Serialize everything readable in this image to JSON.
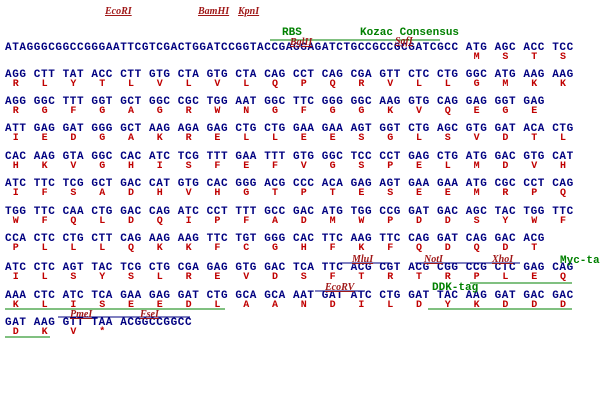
{
  "rows": [
    {
      "leader": "ATAGGGCGGCCGGGAATTCGTCGACTGGATCCGGTACCGAGGAGATCTGCCGCCGCGATCGCC",
      "codons": [
        "ATG",
        "AGC",
        "ACC",
        "TCC"
      ],
      "aa": [
        "M",
        "S",
        "T",
        "S"
      ],
      "labels": [
        "EcoRI",
        "BamHI",
        "KpnI",
        "RBS",
        "BglII",
        "Kozac Consensus",
        "SgfI"
      ]
    },
    {
      "codons": [
        "AGG",
        "CTT",
        "TAT",
        "ACC",
        "CTT",
        "GTG",
        "CTA",
        "GTG",
        "CTA",
        "CAG",
        "CCT",
        "CAG",
        "CGA",
        "GTT",
        "CTC",
        "CTG",
        "GGC",
        "ATG",
        "AAG",
        "AAG"
      ],
      "aa": [
        "R",
        "L",
        "Y",
        "T",
        "L",
        "V",
        "L",
        "V",
        "L",
        "Q",
        "P",
        "Q",
        "R",
        "V",
        "L",
        "L",
        "G",
        "M",
        "K",
        "K"
      ],
      "labels": []
    },
    {
      "codons": [
        "AGG",
        "GGC",
        "TTT",
        "GGT",
        "GCT",
        "GGC",
        "CGC",
        "TGG",
        "AAT",
        "GGC",
        "TTC",
        "GGG",
        "GGC",
        "AAG",
        "GTG",
        "CAG",
        "GAG",
        "GGT",
        "GAG"
      ],
      "aa": [
        "R",
        "G",
        "F",
        "G",
        "A",
        "G",
        "R",
        "W",
        "N",
        "G",
        "F",
        "G",
        "G",
        "K",
        "V",
        "Q",
        "E",
        "G",
        "E"
      ],
      "labels": []
    },
    {
      "codons": [
        "ATT",
        "GAG",
        "GAT",
        "GGG",
        "GCT",
        "AAG",
        "AGA",
        "GAG",
        "CTG",
        "CTG",
        "GAA",
        "GAA",
        "AGT",
        "GGT",
        "CTG",
        "AGC",
        "GTG",
        "GAT",
        "ACA",
        "CTG"
      ],
      "aa": [
        "I",
        "E",
        "D",
        "G",
        "A",
        "K",
        "R",
        "E",
        "L",
        "L",
        "E",
        "E",
        "S",
        "G",
        "L",
        "S",
        "V",
        "D",
        "T",
        "L"
      ],
      "labels": []
    },
    {
      "codons": [
        "CAC",
        "AAG",
        "GTA",
        "GGC",
        "CAC",
        "ATC",
        "TCG",
        "TTT",
        "GAA",
        "TTT",
        "GTG",
        "GGC",
        "TCC",
        "CCT",
        "GAG",
        "CTG",
        "ATG",
        "GAC",
        "GTG",
        "CAT"
      ],
      "aa": [
        "H",
        "K",
        "V",
        "G",
        "H",
        "I",
        "S",
        "F",
        "E",
        "F",
        "V",
        "G",
        "S",
        "P",
        "E",
        "L",
        "M",
        "D",
        "V",
        "H"
      ],
      "labels": []
    },
    {
      "codons": [
        "ATC",
        "TTC",
        "TCG",
        "GCT",
        "GAC",
        "CAT",
        "GTG",
        "CAC",
        "GGG",
        "ACG",
        "CCC",
        "ACA",
        "GAG",
        "AGT",
        "GAA",
        "GAA",
        "ATG",
        "CGC",
        "CCT",
        "CAG"
      ],
      "aa": [
        "I",
        "F",
        "S",
        "A",
        "D",
        "H",
        "V",
        "H",
        "G",
        "T",
        "P",
        "T",
        "E",
        "S",
        "E",
        "E",
        "M",
        "R",
        "P",
        "Q"
      ],
      "labels": []
    },
    {
      "codons": [
        "TGG",
        "TTC",
        "CAA",
        "CTG",
        "GAC",
        "CAG",
        "ATC",
        "CCT",
        "TTT",
        "GCC",
        "GAC",
        "ATG",
        "TGG",
        "CCG",
        "GAT",
        "GAC",
        "AGC",
        "TAC",
        "TGG",
        "TTC"
      ],
      "aa": [
        "W",
        "F",
        "Q",
        "L",
        "D",
        "Q",
        "I",
        "P",
        "F",
        "A",
        "D",
        "M",
        "W",
        "P",
        "D",
        "D",
        "S",
        "Y",
        "W",
        "F"
      ],
      "labels": []
    },
    {
      "codons": [
        "CCA",
        "CTC",
        "CTG",
        "CTT",
        "CAG",
        "AAG",
        "AAG",
        "TTC",
        "TGT",
        "GGG",
        "CAC",
        "TTC",
        "AAG",
        "TTC",
        "CAG",
        "GAT",
        "CAG",
        "GAC",
        "ACG"
      ],
      "aa": [
        "P",
        "L",
        "L",
        "L",
        "Q",
        "K",
        "K",
        "F",
        "C",
        "G",
        "H",
        "F",
        "K",
        "F",
        "Q",
        "D",
        "Q",
        "D",
        "T"
      ],
      "labels": []
    },
    {
      "codons": [
        "ATC",
        "CTC",
        "AGT",
        "TAC",
        "TCG",
        "CTG",
        "CGA",
        "GAG",
        "GTG",
        "GAC",
        "TCA",
        "TTC",
        "ACG",
        "CGT",
        "ACG",
        "CGG",
        "CCG",
        "CTC",
        "GAG",
        "CAG"
      ],
      "aa": [
        "I",
        "L",
        "S",
        "Y",
        "S",
        "L",
        "R",
        "E",
        "V",
        "D",
        "S",
        "F",
        "T",
        "R",
        "T",
        "R",
        "P",
        "L",
        "E",
        "Q"
      ],
      "labels": [
        "MluI",
        "NotI",
        "XhoI",
        "Myc-tag"
      ]
    },
    {
      "codons": [
        "AAA",
        "CTC",
        "ATC",
        "TCA",
        "GAA",
        "GAG",
        "GAT",
        "CTG",
        "GCA",
        "GCA",
        "AAT",
        "GAT",
        "ATC",
        "CTG",
        "GAT",
        "TAC",
        "AAG",
        "GAT",
        "GAC",
        "GAC"
      ],
      "aa": [
        "K",
        "L",
        "I",
        "S",
        "E",
        "E",
        "D",
        "L",
        "A",
        "A",
        "N",
        "D",
        "I",
        "L",
        "D",
        "Y",
        "K",
        "D",
        "D",
        "D"
      ],
      "labels": [
        "EcoRV",
        "DDK-tag"
      ]
    },
    {
      "codons": [
        "GAT",
        "AAG",
        "GTT",
        "TAA"
      ],
      "trailer": "ACGGCCGGCC",
      "aa": [
        "D",
        "K",
        "V",
        "*"
      ],
      "labels": [
        "PmeI",
        "FseI"
      ]
    }
  ]
}
